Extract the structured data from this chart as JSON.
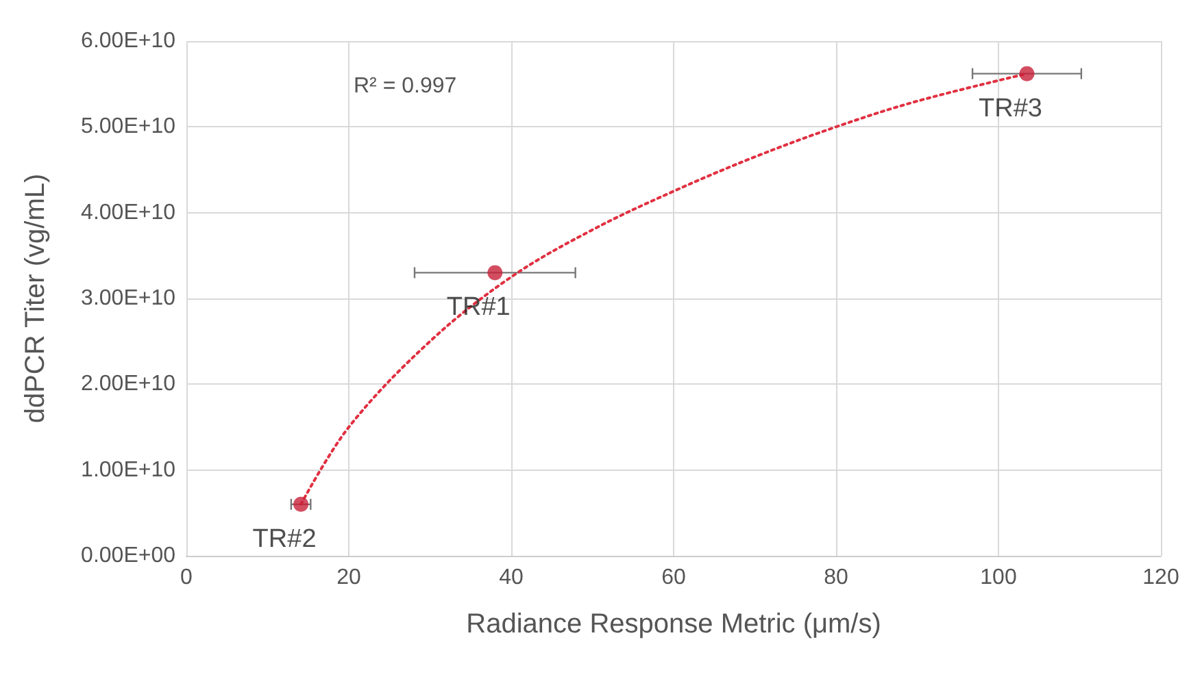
{
  "chart_data": {
    "type": "scatter",
    "xlabel": "Radiance Response Metric (μm/s)",
    "ylabel": "ddPCR Titer (vg/mL)",
    "xlim": [
      0,
      120
    ],
    "xticks": [
      0,
      20,
      40,
      60,
      80,
      100,
      120
    ],
    "ylim": [
      0,
      60000000000
    ],
    "yticks": [
      {
        "value": 0,
        "label": "0.00E+00"
      },
      {
        "value": 10000000000,
        "label": "1.00E+10"
      },
      {
        "value": 20000000000,
        "label": "2.00E+10"
      },
      {
        "value": 30000000000,
        "label": "3.00E+10"
      },
      {
        "value": 40000000000,
        "label": "4.00E+10"
      },
      {
        "value": 50000000000,
        "label": "5.00E+10"
      },
      {
        "value": 60000000000,
        "label": "6.00E+10"
      }
    ],
    "grid": true,
    "marker": "circle",
    "series": [
      {
        "color": "#c8203a",
        "x": [
          38,
          14.1,
          103.5
        ],
        "values": [
          33000000000,
          6000000000,
          56200000000
        ],
        "xerrors": [
          9.9,
          1.2,
          6.7
        ]
      },
      {
        "type": "line",
        "color": "#e03040",
        "marker": "none",
        "line_style": "dotted",
        "x": [
          14.1,
          20,
          30,
          40,
          50,
          60,
          70,
          80,
          90,
          103.5
        ],
        "values": [
          6000000000,
          15000000000,
          25000000000,
          32500000000,
          38000000000,
          42500000000,
          46500000000,
          50000000000,
          53000000000,
          56200000000
        ]
      }
    ],
    "annotations": [
      "R² = 0.997",
      {
        "text": "TR#1",
        "x": 38,
        "y": 33000000000
      },
      {
        "text": "TR#2",
        "x": 14.1,
        "y": 6000000000
      },
      {
        "text": "TR#3",
        "x": 103.5,
        "y": 56200000000
      }
    ]
  }
}
